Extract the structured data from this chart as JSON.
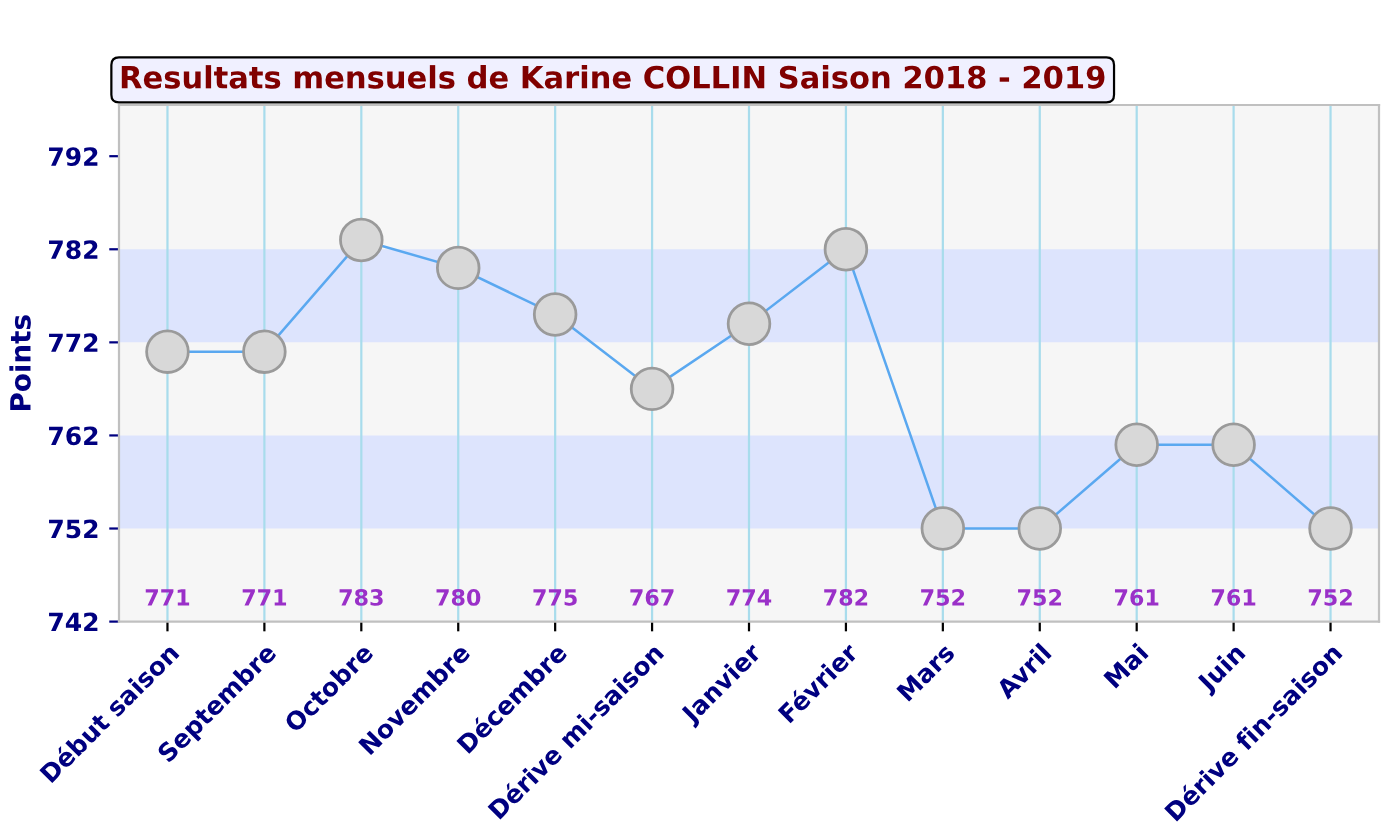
{
  "chart_data": {
    "type": "line",
    "title": "Resultats mensuels de Karine COLLIN Saison 2018 - 2019",
    "ylabel": "Points",
    "categories": [
      "Début saison",
      "Septembre",
      "Octobre",
      "Novembre",
      "Décembre",
      "Dérive mi-saison",
      "Janvier",
      "Février",
      "Mars",
      "Avril",
      "Mai",
      "Juin",
      "Dérive fin-saison"
    ],
    "series": [
      {
        "color": "#5aa8f0",
        "values": [
          771,
          771,
          783,
          780,
          775,
          767,
          774,
          782,
          752,
          752,
          761,
          761,
          752
        ]
      }
    ],
    "ylim": [
      742,
      797.5
    ],
    "yticks": [
      742,
      752,
      762,
      772,
      782,
      792
    ],
    "bands": [
      {
        "axis": "y",
        "from": 752,
        "to": 762,
        "color": "#dde4fd"
      },
      {
        "axis": "y",
        "from": 772,
        "to": 782,
        "color": "#dde4fd"
      }
    ],
    "annotations": [
      "771",
      "771",
      "783",
      "780",
      "775",
      "767",
      "774",
      "782",
      "752",
      "752",
      "761",
      "761",
      "752"
    ],
    "grid": "x",
    "marker": "circle",
    "line_style": "solid"
  }
}
